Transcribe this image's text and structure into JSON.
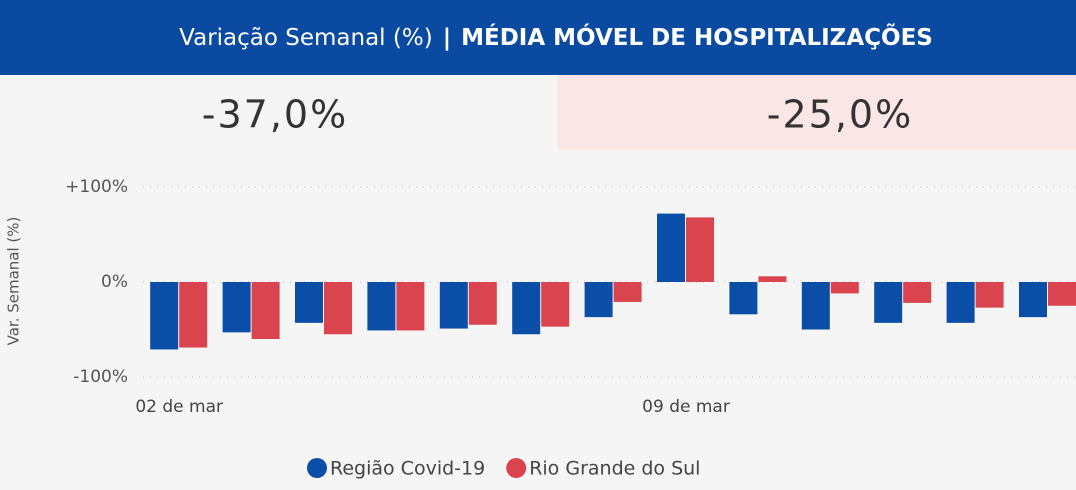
{
  "header": {
    "title": "Variação Semanal (%)",
    "separator": "|",
    "subtitle": "MÉDIA MÓVEL DE HOSPITALIZAÇÕES"
  },
  "kpis": [
    "-37,0%",
    "-25,0%"
  ],
  "chart_data": {
    "type": "bar",
    "y_label": "Var. Semanal (%)",
    "categories": [
      "02 de mar",
      null,
      null,
      null,
      null,
      null,
      null,
      "09 de mar",
      null,
      null,
      null,
      null,
      null
    ],
    "series": [
      {
        "name": "Região Covid-19",
        "color": "#0b4ea8",
        "values": [
          -71,
          -53,
          -43,
          -51,
          -49,
          -55,
          -37,
          72,
          -34,
          -50,
          -43,
          -43,
          -37
        ]
      },
      {
        "name": "Rio Grande do Sul",
        "color": "#d9444f",
        "values": [
          -69,
          -60,
          -55,
          -51,
          -45,
          -47,
          -21,
          68,
          6,
          -12,
          -22,
          -27,
          -25
        ]
      }
    ],
    "ylim": [
      -100,
      100
    ],
    "yticks": [
      {
        "value": 100,
        "label": "+100%"
      },
      {
        "value": 0,
        "label": "0%"
      },
      {
        "value": -100,
        "label": "-100%"
      }
    ],
    "grid": true,
    "legend": "bottom"
  }
}
